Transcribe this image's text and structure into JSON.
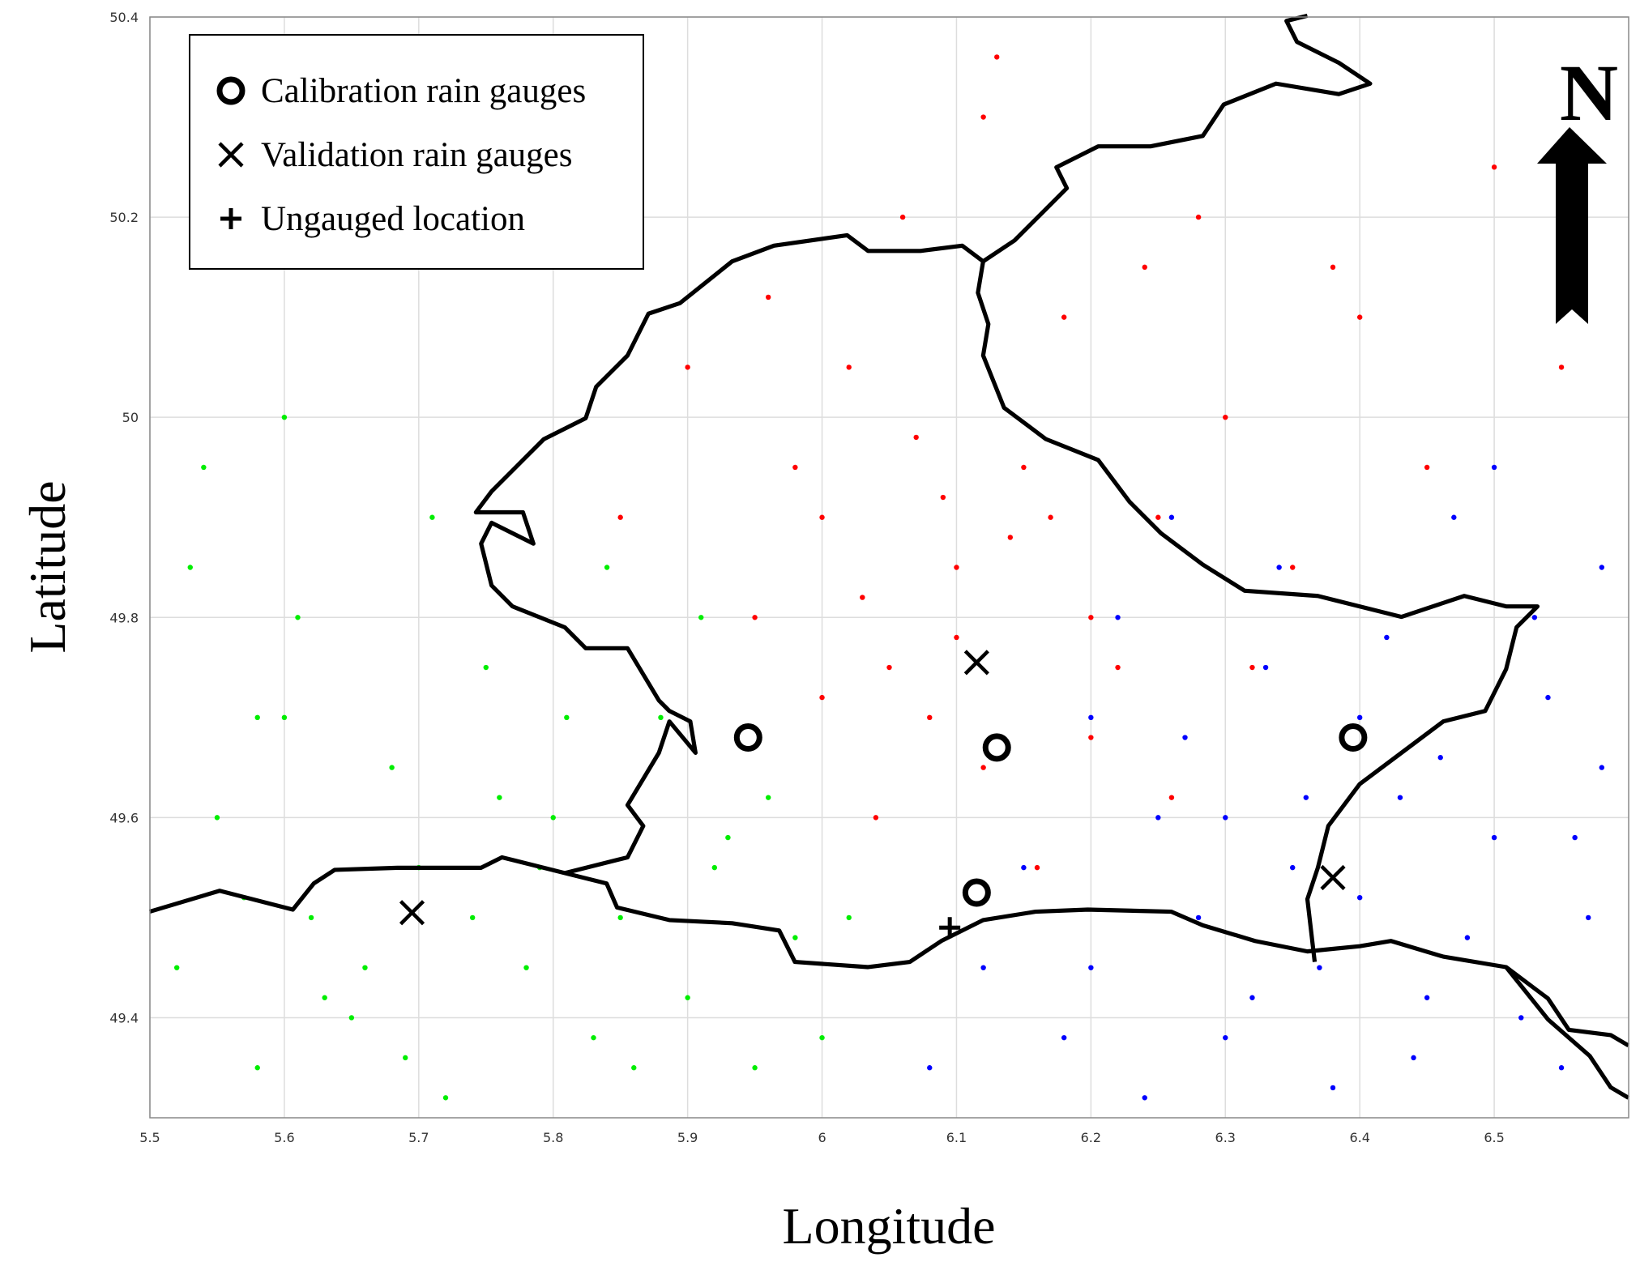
{
  "chart_data": {
    "type": "scatter",
    "xlabel": "Longitude",
    "ylabel": "Latitude",
    "annotation": "N",
    "xlim": [
      5.5,
      6.6
    ],
    "ylim": [
      49.3,
      50.4
    ],
    "xticks": [
      5.5,
      5.6,
      5.7,
      5.8,
      5.9,
      6,
      6.1,
      6.2,
      6.3,
      6.4,
      6.5
    ],
    "yticks": [
      49.4,
      49.6,
      49.8,
      50,
      50.2,
      50.4
    ],
    "grid": true,
    "legend": "upper left",
    "series": [
      {
        "color": "#00ee00",
        "marker": "dot",
        "x": [
          5.52,
          5.55,
          5.58,
          5.6,
          5.62,
          5.65,
          5.68,
          5.7,
          5.72,
          5.75,
          5.78,
          5.8,
          5.83,
          5.85,
          5.88,
          5.9,
          5.93,
          5.95,
          5.98,
          6.0,
          5.53,
          5.57,
          5.61,
          5.66,
          5.71,
          5.76,
          5.81,
          5.86,
          5.91,
          5.96,
          5.54,
          5.63,
          5.74,
          5.84,
          5.92,
          6.02,
          5.58,
          5.69,
          5.79,
          5.6
        ],
        "y": [
          49.45,
          49.6,
          49.35,
          49.7,
          49.5,
          49.4,
          49.65,
          49.55,
          49.32,
          49.75,
          49.45,
          49.6,
          49.38,
          49.5,
          49.7,
          49.42,
          49.58,
          49.35,
          49.48,
          49.38,
          49.85,
          49.52,
          49.8,
          49.45,
          49.9,
          49.62,
          49.7,
          49.35,
          49.8,
          49.62,
          49.95,
          49.42,
          49.5,
          49.85,
          49.55,
          49.5,
          49.7,
          49.36,
          49.55,
          50.0
        ]
      },
      {
        "color": "#ff0000",
        "marker": "dot",
        "x": [
          5.95,
          6.0,
          6.05,
          6.1,
          6.15,
          6.2,
          6.25,
          6.3,
          6.35,
          6.02,
          6.08,
          6.12,
          6.18,
          6.22,
          5.98,
          6.04,
          6.14,
          6.24,
          6.06,
          6.16,
          5.9,
          6.4,
          6.45,
          6.5,
          5.85,
          6.12,
          6.03,
          6.2,
          6.28,
          6.1,
          6.0,
          6.32,
          6.07,
          6.17,
          5.96,
          6.26,
          6.38,
          6.55,
          6.13,
          6.09
        ],
        "y": [
          49.8,
          49.9,
          49.75,
          49.85,
          49.95,
          49.8,
          49.9,
          50.0,
          49.85,
          50.05,
          49.7,
          49.65,
          50.1,
          49.75,
          49.95,
          49.6,
          49.88,
          50.15,
          50.2,
          49.55,
          50.05,
          50.1,
          49.95,
          50.25,
          49.9,
          50.3,
          49.82,
          49.68,
          50.2,
          49.78,
          49.72,
          49.75,
          49.98,
          49.9,
          50.12,
          49.62,
          50.15,
          50.05,
          50.36,
          49.92
        ]
      },
      {
        "color": "#0000ff",
        "marker": "dot",
        "x": [
          6.2,
          6.25,
          6.3,
          6.35,
          6.4,
          6.45,
          6.5,
          6.55,
          6.58,
          6.22,
          6.28,
          6.33,
          6.38,
          6.43,
          6.48,
          6.53,
          6.15,
          6.18,
          6.27,
          6.37,
          6.47,
          6.57,
          6.24,
          6.34,
          6.44,
          6.54,
          6.3,
          6.4,
          6.5,
          6.12,
          6.32,
          6.42,
          6.52,
          6.26,
          6.46,
          6.56,
          6.36,
          6.2,
          6.08,
          6.58
        ],
        "y": [
          49.45,
          49.6,
          49.38,
          49.55,
          49.7,
          49.42,
          49.58,
          49.35,
          49.65,
          49.8,
          49.5,
          49.75,
          49.33,
          49.62,
          49.48,
          49.8,
          49.55,
          49.38,
          49.68,
          49.45,
          49.9,
          49.5,
          49.32,
          49.85,
          49.36,
          49.72,
          49.6,
          49.52,
          49.95,
          49.45,
          49.42,
          49.78,
          49.4,
          49.9,
          49.66,
          49.58,
          49.62,
          49.7,
          49.35,
          49.85
        ]
      },
      {
        "name": "Calibration rain gauges",
        "color": "#000000",
        "marker": "circle",
        "x": [
          5.945,
          6.13,
          6.395,
          6.115
        ],
        "y": [
          49.68,
          49.67,
          49.68,
          49.525
        ]
      },
      {
        "name": "Validation rain gauges",
        "color": "#000000",
        "marker": "x",
        "x": [
          5.695,
          6.115,
          6.38
        ],
        "y": [
          49.505,
          49.755,
          49.54
        ]
      },
      {
        "name": "Ungauged location",
        "color": "#000000",
        "marker": "plus",
        "x": [
          6.095
        ],
        "y": [
          49.49
        ]
      }
    ]
  }
}
